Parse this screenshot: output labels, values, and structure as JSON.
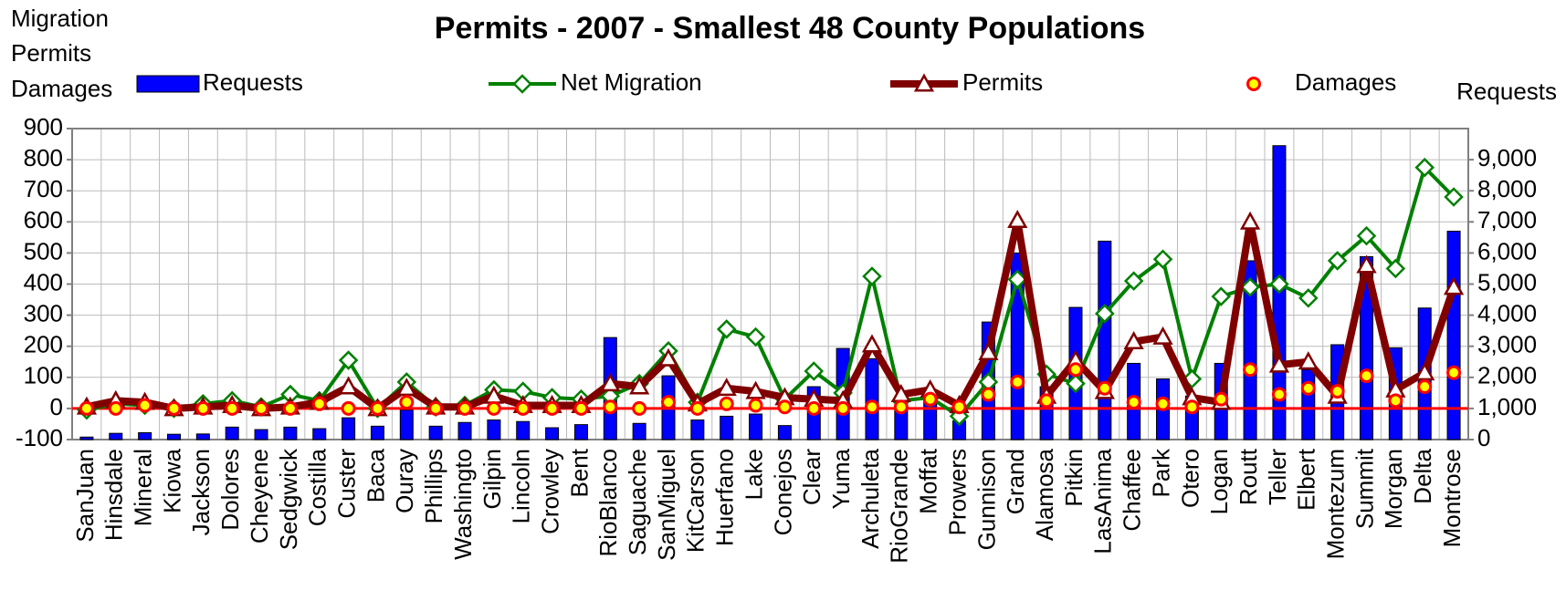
{
  "chart_data": {
    "type": "bar",
    "title": "Permits - 2007 - Smallest 48 County Populations",
    "ylabel": [
      "Migration",
      "Permits",
      "Damages"
    ],
    "y2label": "Requests",
    "categories": [
      "SanJuan",
      "Hinsdale",
      "Mineral",
      "Kiowa",
      "Jackson",
      "Dolores",
      "Cheyene",
      "Sedgwick",
      "Costilla",
      "Custer",
      "Baca",
      "Ouray",
      "Phillips",
      "Washingto",
      "Gilpin",
      "Lincoln",
      "Crowley",
      "Bent",
      "RioBlanco",
      "Saguache",
      "SanMiguel",
      "KitCarson",
      "Huerfano",
      "Lake",
      "Conejos",
      "Clear",
      "Yuma",
      "Archuleta",
      "RioGrande",
      "Moffat",
      "Prowers",
      "Gunnison",
      "Grand",
      "Alamosa",
      "Pitkin",
      "LasAnima",
      "Chaffee",
      "Park",
      "Otero",
      "Logan",
      "Routt",
      "Teller",
      "Elbert",
      "Montezum",
      "Summit",
      "Morgan",
      "Delta",
      "Montrose"
    ],
    "series": [
      {
        "name": "Requests",
        "type": "bar",
        "axis": "y2",
        "color": "#0000ff",
        "values": [
          80,
          200,
          220,
          170,
          180,
          400,
          320,
          400,
          350,
          700,
          430,
          950,
          430,
          550,
          630,
          580,
          380,
          480,
          3280,
          520,
          2050,
          630,
          750,
          820,
          450,
          1700,
          2930,
          2600,
          1050,
          1500,
          600,
          3780,
          6000,
          1700,
          4250,
          6380,
          2450,
          1950,
          1400,
          2450,
          5750,
          9450,
          2250,
          3050,
          5880,
          2950,
          4230,
          6700
        ]
      },
      {
        "name": "Net Migration",
        "type": "line",
        "color": "#008000",
        "values": [
          -5,
          15,
          10,
          0,
          15,
          25,
          5,
          45,
          25,
          155,
          0,
          85,
          5,
          10,
          60,
          55,
          35,
          30,
          40,
          80,
          185,
          20,
          255,
          230,
          30,
          120,
          50,
          425,
          25,
          35,
          -25,
          85,
          415,
          110,
          80,
          305,
          410,
          480,
          95,
          360,
          390,
          400,
          355,
          475,
          555,
          450,
          775,
          680
        ]
      },
      {
        "name": "Permits",
        "type": "line",
        "color": "#800000",
        "values": [
          5,
          25,
          20,
          0,
          5,
          10,
          0,
          5,
          20,
          70,
          0,
          65,
          5,
          5,
          40,
          10,
          10,
          10,
          80,
          70,
          160,
          15,
          65,
          55,
          35,
          30,
          25,
          205,
          45,
          60,
          10,
          180,
          605,
          40,
          155,
          55,
          215,
          230,
          35,
          20,
          600,
          140,
          150,
          40,
          460,
          60,
          115,
          390
        ]
      },
      {
        "name": "Damages",
        "type": "scatter",
        "color": "#ffff00",
        "values": [
          0,
          0,
          10,
          0,
          0,
          0,
          0,
          0,
          15,
          0,
          0,
          20,
          0,
          0,
          0,
          0,
          0,
          0,
          5,
          0,
          20,
          0,
          15,
          10,
          5,
          0,
          0,
          5,
          5,
          30,
          5,
          45,
          85,
          25,
          125,
          65,
          20,
          15,
          5,
          30,
          125,
          45,
          65,
          55,
          105,
          25,
          70,
          115
        ]
      }
    ],
    "ylim": [
      -100,
      900
    ],
    "yticks": [
      -100,
      0,
      100,
      200,
      300,
      400,
      500,
      600,
      700,
      800,
      900
    ],
    "y2lim": [
      0,
      10000
    ],
    "y2ticks": [
      0,
      {
        "value": 1000,
        "label": "1,000"
      },
      {
        "value": 2000,
        "label": "2,000"
      },
      {
        "value": 3000,
        "label": "3,000"
      },
      {
        "value": 4000,
        "label": "4,000"
      },
      {
        "value": 5000,
        "label": "5,000"
      },
      {
        "value": 6000,
        "label": "6,000"
      },
      {
        "value": 7000,
        "label": "7,000"
      },
      {
        "value": 8000,
        "label": "8,000"
      },
      {
        "value": 9000,
        "label": "9,000"
      }
    ],
    "grid": true
  }
}
